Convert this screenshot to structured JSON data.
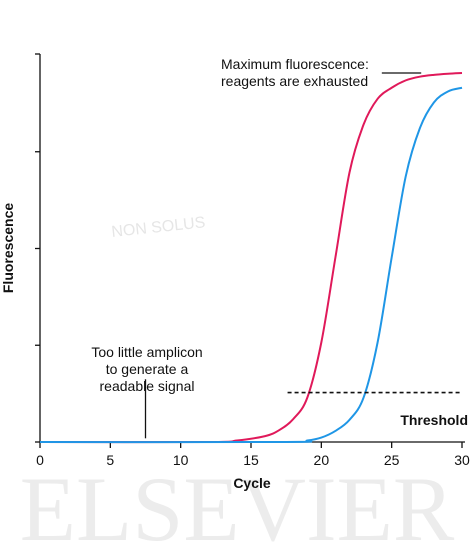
{
  "chart_data": {
    "type": "line",
    "xlabel": "Cycle",
    "ylabel": "Fluorescence",
    "xlim": [
      0,
      30
    ],
    "ylim": [
      0,
      1
    ],
    "x_ticks": [
      0,
      5,
      10,
      15,
      20,
      25,
      30
    ],
    "y_ticks_shown_without_labels": [
      0,
      0.25,
      0.5,
      0.75,
      1
    ],
    "grid": false,
    "watermark": {
      "text": "ELSEVIER",
      "motto": "NON SOLUS"
    },
    "series": [
      {
        "color": "#e0195a",
        "x": [
          0,
          12,
          14,
          16,
          17,
          18,
          19,
          20,
          21,
          22,
          23,
          24,
          25,
          26,
          27,
          28,
          29,
          30
        ],
        "y": [
          0,
          0,
          0.004,
          0.016,
          0.032,
          0.062,
          0.12,
          0.27,
          0.5,
          0.73,
          0.86,
          0.93,
          0.96,
          0.98,
          0.99,
          0.995,
          0.998,
          1.0
        ]
      },
      {
        "color": "#1f96e6",
        "x": [
          0,
          17.5,
          19,
          20,
          21,
          22,
          23,
          24,
          25,
          26,
          27,
          28,
          29,
          30
        ],
        "y": [
          0,
          0,
          0.004,
          0.012,
          0.03,
          0.06,
          0.12,
          0.27,
          0.5,
          0.72,
          0.85,
          0.92,
          0.95,
          0.96
        ]
      }
    ],
    "threshold": {
      "y": 0.134,
      "x_start": 17.6,
      "x_end": 30,
      "label": "Threshold",
      "style": "dashed"
    },
    "annotations": [
      {
        "lines": [
          "Maximum fluorescence:",
          "reagents are exhausted"
        ],
        "leader": {
          "x_from": 24.3,
          "x_to": 27.1,
          "y": 1.0
        }
      },
      {
        "lines": [
          "Too little amplicon",
          "to generate a",
          "readable signal"
        ],
        "leader": {
          "x": 7.5,
          "y_from": 0.01,
          "y_to": 0.17
        }
      }
    ]
  }
}
